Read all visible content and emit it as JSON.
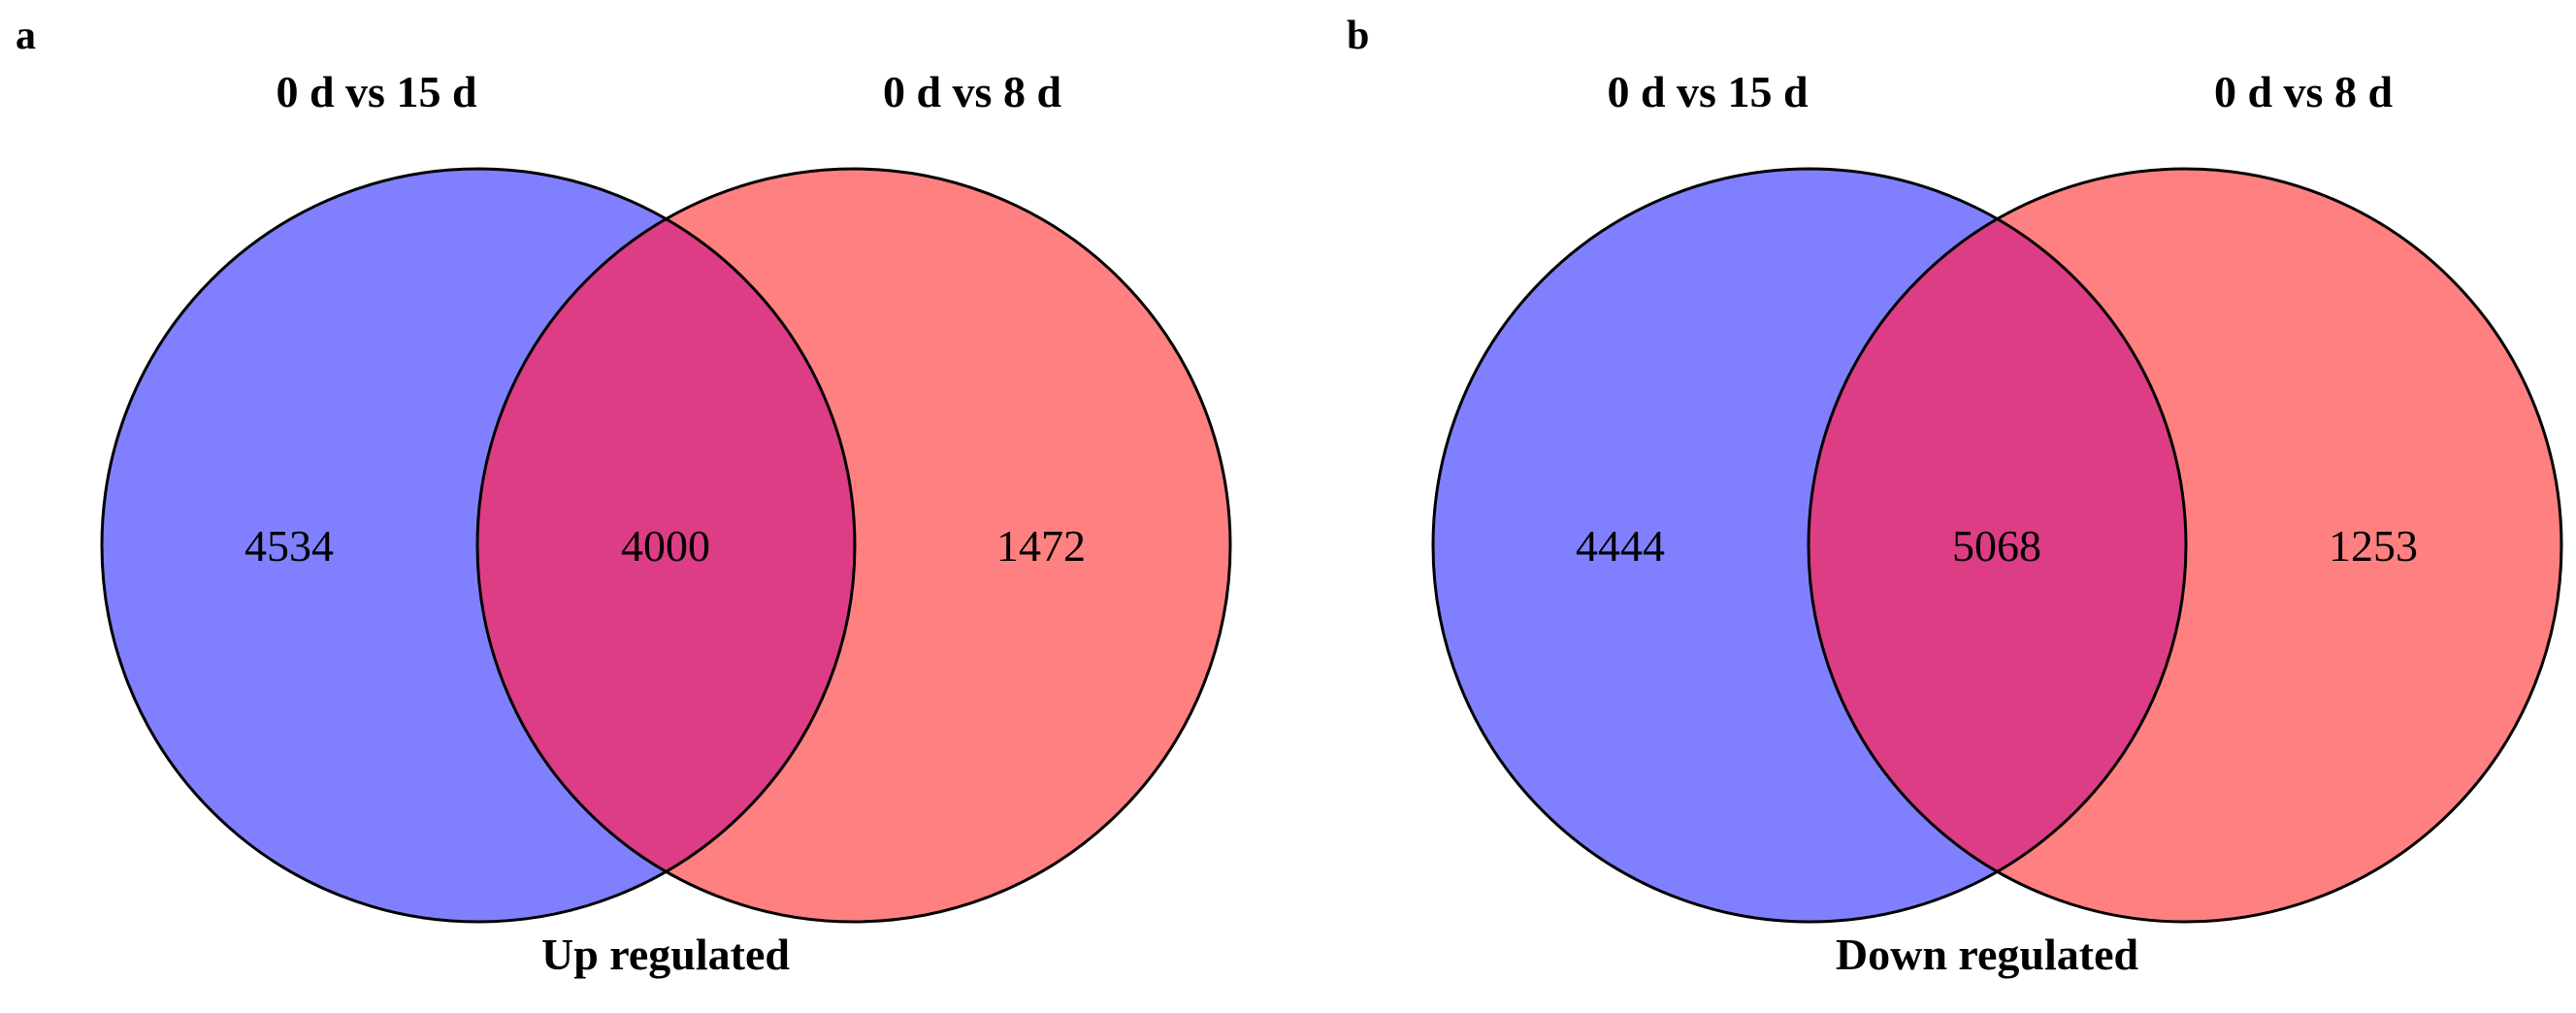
{
  "colors": {
    "left_set": "#8080ff",
    "right_set": "#ff8080",
    "overlap": "#dd3d84",
    "outline": "#000000"
  },
  "panels": [
    {
      "letter": "a",
      "left_title": "0 d vs 15 d",
      "right_title": "0 d vs 8 d",
      "left_only": "4534",
      "overlap": "4000",
      "right_only": "1472",
      "caption": "Up regulated"
    },
    {
      "letter": "b",
      "left_title": "0 d vs 15 d",
      "right_title": "0 d vs 8 d",
      "left_only": "4444",
      "overlap": "5068",
      "right_only": "1253",
      "caption": "Down regulated"
    }
  ]
}
